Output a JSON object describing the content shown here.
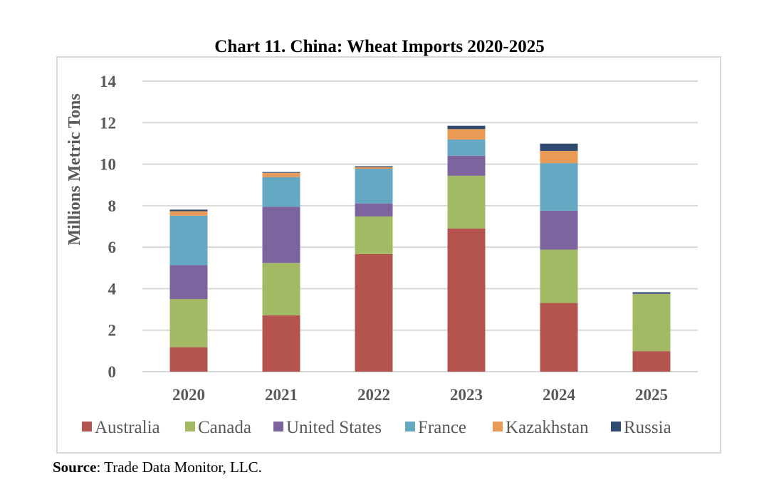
{
  "chart_data": {
    "type": "bar",
    "stacked": true,
    "title": "Chart 11. China: Wheat Imports 2020-2025",
    "xlabel": "",
    "ylabel": "Millions Metric Tons",
    "ylim": [
      0,
      14
    ],
    "yticks": [
      0,
      2,
      4,
      6,
      8,
      10,
      12,
      14
    ],
    "grid": true,
    "legend_position": "bottom",
    "categories": [
      "2020",
      "2021",
      "2022",
      "2023",
      "2024",
      "2025"
    ],
    "series": [
      {
        "name": "Australia",
        "color": "#B3554E",
        "values": [
          1.18,
          2.72,
          5.67,
          6.9,
          3.31,
          0.99
        ]
      },
      {
        "name": "Canada",
        "color": "#A2BA64",
        "values": [
          2.32,
          2.52,
          1.81,
          2.54,
          2.57,
          2.75
        ]
      },
      {
        "name": "United States",
        "color": "#7D649E",
        "values": [
          1.63,
          2.71,
          0.63,
          0.96,
          1.88,
          0.03
        ]
      },
      {
        "name": "France",
        "color": "#65A8C3",
        "values": [
          2.39,
          1.43,
          1.67,
          0.79,
          2.29,
          0.0
        ]
      },
      {
        "name": "Kazakhstan",
        "color": "#E99A55",
        "values": [
          0.21,
          0.2,
          0.07,
          0.5,
          0.59,
          0.0
        ]
      },
      {
        "name": "Russia",
        "color": "#304B6F",
        "values": [
          0.08,
          0.04,
          0.05,
          0.16,
          0.35,
          0.06
        ]
      }
    ]
  },
  "source": {
    "label": "Source",
    "text": ": Trade Data Monitor, LLC."
  }
}
